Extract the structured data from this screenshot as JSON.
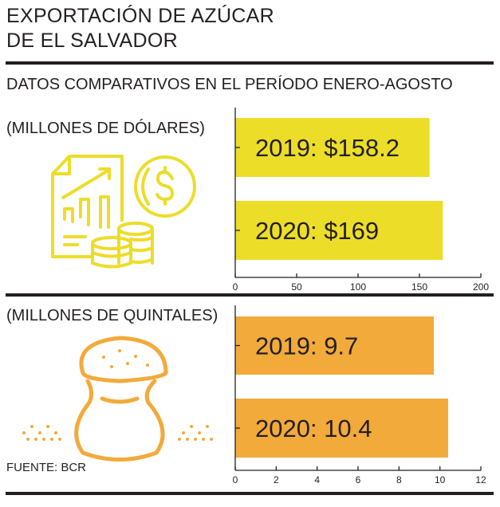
{
  "header": {
    "title_line1": "EXPORTACIÓN DE AZÚCAR",
    "title_line2": "DE EL SALVADOR",
    "subtitle": "DATOS COMPARATIVOS EN EL PERÍODO ENERO-AGOSTO"
  },
  "footer": {
    "source": "FUENTE: BCR"
  },
  "colors": {
    "yellow": "#ecdd29",
    "orange": "#f2aa3b",
    "ink": "#231f20"
  },
  "chart_data": [
    {
      "type": "bar",
      "orientation": "horizontal",
      "title": "(MILLONES DE DÓLARES)",
      "categories": [
        "2019",
        "2020"
      ],
      "values": [
        158.2,
        169
      ],
      "data_labels": [
        "2019: $158.2",
        "2020: $169"
      ],
      "xlim": [
        0,
        200
      ],
      "ticks": [
        "0",
        "50",
        "100",
        "150",
        "200"
      ],
      "tick_values": [
        0,
        50,
        100,
        150,
        200
      ],
      "color": "#ecdd29"
    },
    {
      "type": "bar",
      "orientation": "horizontal",
      "title": "(MILLONES DE QUINTALES)",
      "categories": [
        "2019",
        "2020"
      ],
      "values": [
        9.7,
        10.4
      ],
      "data_labels": [
        "2019: 9.7",
        "2020: 10.4"
      ],
      "xlim": [
        0,
        12
      ],
      "ticks": [
        "0",
        "2",
        "4",
        "6",
        "8",
        "10",
        "12"
      ],
      "tick_values": [
        0,
        2,
        4,
        6,
        8,
        10,
        12
      ],
      "color": "#f2aa3b"
    }
  ]
}
